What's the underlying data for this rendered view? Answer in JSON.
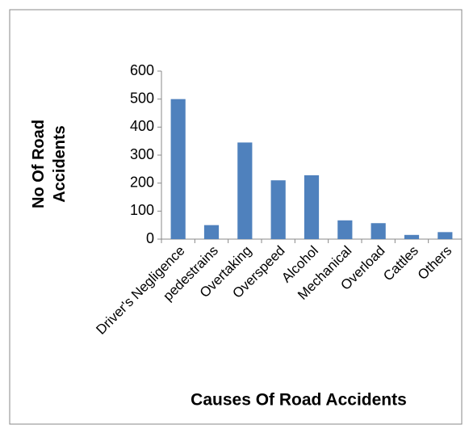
{
  "chart_data": {
    "type": "bar",
    "x_label": "Causes Of Road Accidents",
    "y_label": "No Of Road Accidents",
    "categories": [
      "Driver's Negligence",
      "pedestrains",
      "Overtaking",
      "Overspeed",
      "Alcohol",
      "Mechanical",
      "Overload",
      "Cattles",
      "Others"
    ],
    "values": [
      500,
      50,
      345,
      210,
      228,
      67,
      57,
      15,
      25
    ],
    "color": "#4f81bd",
    "ylim": [
      0,
      600
    ],
    "yticks": [
      0,
      100,
      200,
      300,
      400,
      500,
      600
    ],
    "grid": false
  }
}
